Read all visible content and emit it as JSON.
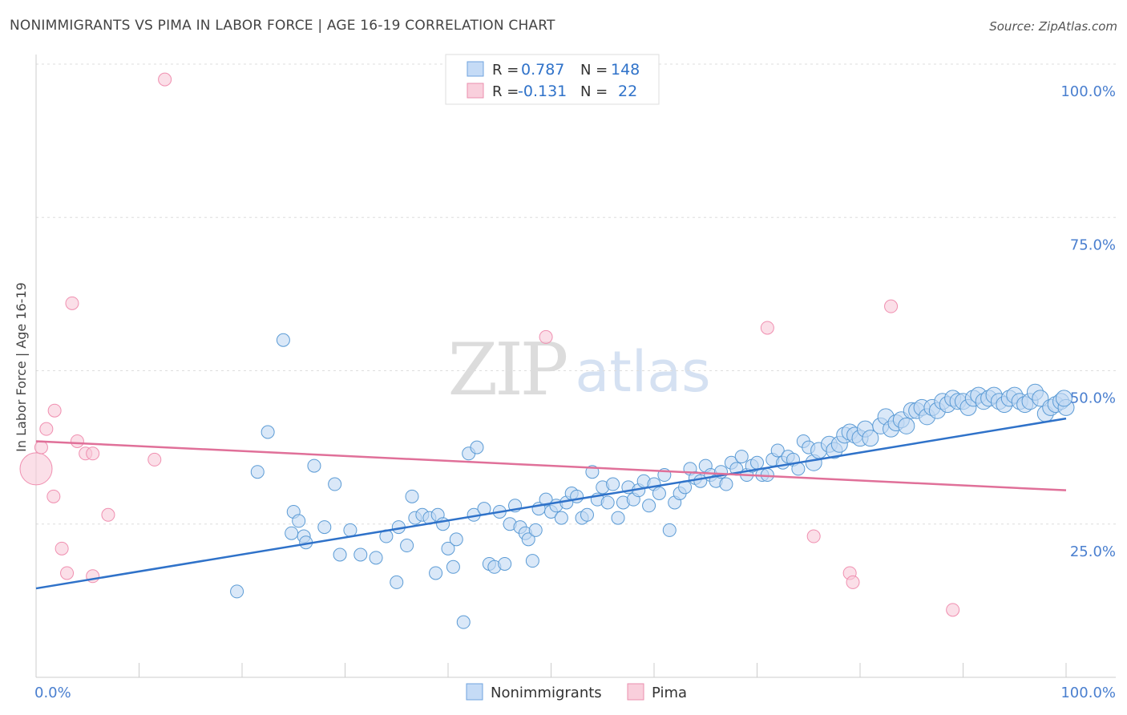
{
  "header": {
    "title": "NONIMMIGRANTS VS PIMA IN LABOR FORCE | AGE 16-19 CORRELATION CHART",
    "source": "Source: ZipAtlas.com"
  },
  "watermark": {
    "zip": "ZIP",
    "atlas": "atlas"
  },
  "legend_top": {
    "rows": [
      {
        "r_label": "R =",
        "r_value": "0.787",
        "n_label": "N =",
        "n_value": "148"
      },
      {
        "r_label": "R =",
        "r_value": "-0.131",
        "n_label": "N =",
        "n_value": "22"
      }
    ]
  },
  "chart_data": {
    "type": "scatter",
    "title": "NONIMMIGRANTS VS PIMA IN LABOR FORCE | AGE 16-19 CORRELATION CHART",
    "xlabel": "",
    "ylabel": "In Labor Force | Age 16-19",
    "xlim": [
      0,
      100
    ],
    "ylim": [
      0,
      100
    ],
    "x_tick_labels": [
      "0.0%",
      "100.0%"
    ],
    "y_tick_labels": [
      "25.0%",
      "50.0%",
      "75.0%",
      "100.0%"
    ],
    "y_ticks": [
      25,
      50,
      75,
      100
    ],
    "grid": true,
    "legend_position": "bottom-center",
    "colors": {
      "Nonimmigrants": "#5b9bd5",
      "Pima": "#f4a6bd",
      "Nonimmigrants_line": "#2f72c9",
      "Pima_line": "#e07099"
    },
    "series": [
      {
        "name": "Nonimmigrants",
        "R": 0.787,
        "N": 148,
        "trend": {
          "x": [
            0,
            100
          ],
          "y": [
            14.5,
            42.2
          ]
        },
        "points": [
          [
            19.5,
            14.0
          ],
          [
            24.0,
            55.0
          ],
          [
            22.5,
            40.0
          ],
          [
            21.5,
            33.5
          ],
          [
            25.0,
            27.0
          ],
          [
            25.5,
            25.5
          ],
          [
            24.8,
            23.5
          ],
          [
            26.0,
            23.0
          ],
          [
            26.2,
            22.0
          ],
          [
            27.0,
            34.5
          ],
          [
            28.0,
            24.5
          ],
          [
            29.0,
            31.5
          ],
          [
            29.5,
            20.0
          ],
          [
            30.5,
            24.0
          ],
          [
            31.5,
            20.0
          ],
          [
            33.0,
            19.5
          ],
          [
            34.0,
            23.0
          ],
          [
            35.0,
            15.5
          ],
          [
            35.2,
            24.5
          ],
          [
            36.0,
            21.5
          ],
          [
            36.5,
            29.5
          ],
          [
            36.8,
            26.0
          ],
          [
            37.5,
            26.5
          ],
          [
            38.2,
            26.0
          ],
          [
            38.8,
            17.0
          ],
          [
            39.0,
            26.5
          ],
          [
            39.5,
            25.0
          ],
          [
            40.0,
            21.0
          ],
          [
            40.5,
            18.0
          ],
          [
            40.8,
            22.5
          ],
          [
            41.5,
            9.0
          ],
          [
            42.0,
            36.5
          ],
          [
            42.5,
            26.5
          ],
          [
            42.8,
            37.5
          ],
          [
            43.5,
            27.5
          ],
          [
            44.0,
            18.5
          ],
          [
            44.5,
            18.0
          ],
          [
            45.0,
            27.0
          ],
          [
            45.5,
            18.5
          ],
          [
            46.0,
            25.0
          ],
          [
            46.5,
            28.0
          ],
          [
            47.0,
            24.5
          ],
          [
            47.5,
            23.5
          ],
          [
            47.8,
            22.5
          ],
          [
            48.5,
            24.0
          ],
          [
            48.2,
            19.0
          ],
          [
            48.8,
            27.5
          ],
          [
            49.5,
            29.0
          ],
          [
            50.0,
            27.0
          ],
          [
            50.5,
            28.0
          ],
          [
            51.0,
            26.0
          ],
          [
            51.5,
            28.5
          ],
          [
            52.0,
            30.0
          ],
          [
            52.5,
            29.5
          ],
          [
            53.0,
            26.0
          ],
          [
            53.5,
            26.5
          ],
          [
            54.0,
            33.5
          ],
          [
            54.5,
            29.0
          ],
          [
            55.0,
            31.0
          ],
          [
            55.5,
            28.5
          ],
          [
            56.0,
            31.5
          ],
          [
            56.5,
            26.0
          ],
          [
            57.0,
            28.5
          ],
          [
            57.5,
            31.0
          ],
          [
            58.0,
            29.0
          ],
          [
            58.5,
            30.5
          ],
          [
            59.0,
            32.0
          ],
          [
            59.5,
            28.0
          ],
          [
            60.0,
            31.5
          ],
          [
            60.5,
            30.0
          ],
          [
            61.0,
            33.0
          ],
          [
            61.5,
            24.0
          ],
          [
            62.0,
            28.5
          ],
          [
            62.5,
            30.0
          ],
          [
            63.0,
            31.0
          ],
          [
            63.5,
            34.0
          ],
          [
            64.0,
            32.5
          ],
          [
            64.5,
            32.0
          ],
          [
            65.0,
            34.5
          ],
          [
            65.5,
            33.0
          ],
          [
            66.0,
            32.0
          ],
          [
            66.5,
            33.5
          ],
          [
            67.0,
            31.5
          ],
          [
            67.5,
            35.0
          ],
          [
            68.0,
            34.0
          ],
          [
            68.5,
            36.0
          ],
          [
            69.0,
            33.0
          ],
          [
            69.5,
            34.5
          ],
          [
            70.0,
            35.0
          ],
          [
            70.5,
            33.0
          ],
          [
            71.0,
            33.0
          ],
          [
            71.5,
            35.5
          ],
          [
            72.0,
            37.0
          ],
          [
            72.5,
            35.0
          ],
          [
            73.0,
            36.0
          ],
          [
            73.5,
            35.5
          ],
          [
            74.0,
            34.0
          ],
          [
            74.5,
            38.5
          ],
          [
            75.0,
            37.5
          ],
          [
            75.5,
            35.0
          ],
          [
            76.0,
            37.0
          ],
          [
            77.0,
            38.0
          ],
          [
            77.5,
            37.0
          ],
          [
            78.0,
            38.0
          ],
          [
            78.5,
            39.5
          ],
          [
            79.0,
            40.0
          ],
          [
            79.5,
            39.5
          ],
          [
            80.0,
            39.0
          ],
          [
            80.5,
            40.5
          ],
          [
            81.0,
            39.0
          ],
          [
            82.0,
            41.0
          ],
          [
            82.5,
            42.5
          ],
          [
            83.0,
            40.5
          ],
          [
            83.5,
            41.5
          ],
          [
            84.0,
            42.0
          ],
          [
            84.5,
            41.0
          ],
          [
            85.0,
            43.5
          ],
          [
            85.5,
            43.5
          ],
          [
            86.0,
            44.0
          ],
          [
            86.5,
            42.5
          ],
          [
            87.0,
            44.0
          ],
          [
            87.5,
            43.5
          ],
          [
            88.0,
            45.0
          ],
          [
            88.5,
            44.5
          ],
          [
            89.0,
            45.5
          ],
          [
            89.5,
            45.0
          ],
          [
            90.0,
            45.0
          ],
          [
            90.5,
            44.0
          ],
          [
            91.0,
            45.5
          ],
          [
            91.5,
            46.0
          ],
          [
            92.0,
            45.0
          ],
          [
            92.5,
            45.5
          ],
          [
            93.0,
            46.0
          ],
          [
            93.5,
            45.0
          ],
          [
            94.0,
            44.5
          ],
          [
            94.5,
            45.5
          ],
          [
            95.0,
            46.0
          ],
          [
            95.5,
            45.0
          ],
          [
            96.0,
            44.5
          ],
          [
            96.5,
            45.0
          ],
          [
            97.0,
            46.5
          ],
          [
            97.5,
            45.5
          ],
          [
            98.0,
            43.0
          ],
          [
            98.5,
            44.0
          ],
          [
            99.0,
            44.5
          ],
          [
            99.5,
            45.0
          ],
          [
            100.0,
            44.0
          ],
          [
            99.8,
            45.5
          ]
        ]
      },
      {
        "name": "Pima",
        "R": -0.131,
        "N": 22,
        "trend": {
          "x": [
            0,
            100
          ],
          "y": [
            38.5,
            30.5
          ]
        },
        "points": [
          [
            0.0,
            34.0
          ],
          [
            0.5,
            37.5
          ],
          [
            1.0,
            40.5
          ],
          [
            1.8,
            43.5
          ],
          [
            1.7,
            29.5
          ],
          [
            2.5,
            21.0
          ],
          [
            3.0,
            17.0
          ],
          [
            3.5,
            61.0
          ],
          [
            4.0,
            38.5
          ],
          [
            4.8,
            36.5
          ],
          [
            5.5,
            36.5
          ],
          [
            5.5,
            16.5
          ],
          [
            7.0,
            26.5
          ],
          [
            11.5,
            35.5
          ],
          [
            12.5,
            97.5
          ],
          [
            49.5,
            55.5
          ],
          [
            71.0,
            57.0
          ],
          [
            75.5,
            23.0
          ],
          [
            79.0,
            17.0
          ],
          [
            79.3,
            15.5
          ],
          [
            83.0,
            60.5
          ],
          [
            89.0,
            11.0
          ]
        ]
      }
    ]
  },
  "legend_bottom": {
    "items": [
      "Nonimmigrants",
      "Pima"
    ]
  }
}
